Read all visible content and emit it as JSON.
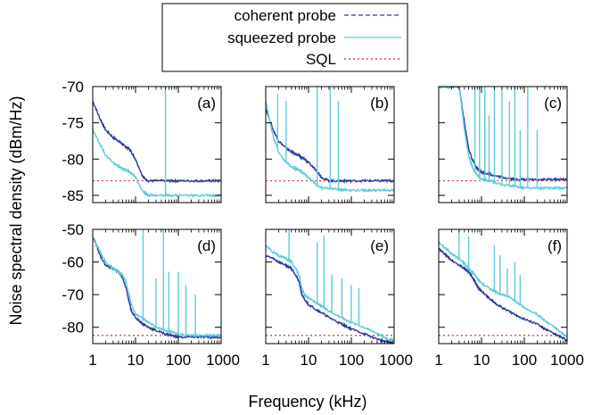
{
  "legend": {
    "placement": "top-center",
    "entries": [
      {
        "label": "coherent probe",
        "color": "#2b3a9e",
        "dash": "dashed"
      },
      {
        "label": "squeezed probe",
        "color": "#5ccbdc",
        "dash": "solid"
      },
      {
        "label": "SQL",
        "color": "#cc2222",
        "dash": "dotted"
      }
    ]
  },
  "chart_data": {
    "type": "line",
    "xlabel": "Frequency (kHz)",
    "ylabel": "Noise spectral density (dBm/Hz)",
    "xscale": "log",
    "xlim": [
      1,
      1000
    ],
    "x_ticks": [
      "1",
      "10",
      "100",
      "1000"
    ],
    "x_tick_values": [
      1,
      10,
      100,
      1000
    ],
    "x": [
      1,
      1.5,
      2,
      3,
      4,
      5,
      6,
      7,
      8,
      10,
      15,
      20,
      30,
      50,
      70,
      100,
      200,
      300,
      500,
      700,
      1000
    ],
    "rows": [
      {
        "ylim": [
          -86,
          -70
        ],
        "y_ticks": [
          "-70",
          "-75",
          "-80",
          "-85"
        ],
        "y_tick_values": [
          -70,
          -75,
          -80,
          -85
        ]
      },
      {
        "ylim": [
          -85,
          -50
        ],
        "y_ticks": [
          "-50",
          "-60",
          "-70",
          "-80"
        ],
        "y_tick_values": [
          -50,
          -60,
          -70,
          -80
        ]
      }
    ],
    "panels": [
      {
        "label": "(a)",
        "row": 0,
        "col": 0,
        "sql": -83,
        "series": [
          {
            "name": "coherent probe",
            "values": [
              -72,
              -74.5,
              -76,
              -77,
              -77.5,
              -78,
              -78.3,
              -78.6,
              -79,
              -80,
              -82.5,
              -83,
              -83,
              -83,
              -83,
              -83,
              -83,
              -83,
              -83,
              -83,
              -83
            ]
          },
          {
            "name": "squeezed probe",
            "values": [
              -76,
              -78,
              -79.5,
              -80.5,
              -81,
              -81.3,
              -81.5,
              -81.8,
              -82,
              -82.5,
              -84.5,
              -85,
              -85,
              -85,
              -85,
              -85,
              -85,
              -85,
              -85,
              -85,
              -85
            ]
          }
        ],
        "spikes": [
          {
            "x": 50,
            "y": -70
          }
        ]
      },
      {
        "label": "(b)",
        "row": 0,
        "col": 1,
        "sql": -83,
        "series": [
          {
            "name": "coherent probe",
            "values": [
              -73,
              -76,
              -77.5,
              -78.5,
              -79,
              -79.3,
              -79.5,
              -79.8,
              -80,
              -80.5,
              -81.5,
              -82.5,
              -83,
              -83,
              -83,
              -83,
              -83,
              -83,
              -83,
              -83,
              -83
            ]
          },
          {
            "name": "squeezed probe",
            "values": [
              -72,
              -77,
              -79,
              -80.5,
              -81,
              -81.3,
              -81.5,
              -81.8,
              -82,
              -82.5,
              -83.5,
              -84,
              -84,
              -84.2,
              -84.2,
              -84.3,
              -84.3,
              -84.3,
              -84.3,
              -84.3,
              -84.3
            ]
          }
        ],
        "spikes": [
          {
            "x": 1.9,
            "y": -71
          },
          {
            "x": 3,
            "y": -72
          },
          {
            "x": 16,
            "y": -70
          },
          {
            "x": 32,
            "y": -70
          },
          {
            "x": 50,
            "y": -72
          }
        ]
      },
      {
        "label": "(c)",
        "row": 0,
        "col": 2,
        "sql": -83,
        "series": [
          {
            "name": "coherent probe",
            "values": [
              -70,
              -70,
              -70,
              -70,
              -75,
              -78.5,
              -80,
              -80.8,
              -81.3,
              -81.8,
              -82,
              -82.3,
              -82.5,
              -82.7,
              -82.8,
              -82.8,
              -82.8,
              -82.8,
              -82.8,
              -82.8,
              -82.8
            ]
          },
          {
            "name": "squeezed probe",
            "values": [
              -70,
              -70,
              -70,
              -70,
              -76,
              -79.5,
              -81,
              -81.8,
              -82.2,
              -82.7,
              -83,
              -83.2,
              -83.5,
              -83.7,
              -83.8,
              -84,
              -84,
              -84,
              -84,
              -84,
              -84
            ]
          }
        ],
        "spikes": [
          {
            "x": 7,
            "y": -70
          },
          {
            "x": 9,
            "y": -70
          },
          {
            "x": 12,
            "y": -70
          },
          {
            "x": 15,
            "y": -74
          },
          {
            "x": 20,
            "y": -70
          },
          {
            "x": 30,
            "y": -70
          },
          {
            "x": 45,
            "y": -72
          },
          {
            "x": 60,
            "y": -70
          },
          {
            "x": 80,
            "y": -76
          },
          {
            "x": 120,
            "y": -70
          },
          {
            "x": 200,
            "y": -76
          }
        ]
      },
      {
        "label": "(d)",
        "row": 1,
        "col": 0,
        "sql": -82.5,
        "series": [
          {
            "name": "coherent probe",
            "values": [
              -52,
              -58,
              -61,
              -62,
              -63,
              -65,
              -68,
              -72,
              -75,
              -77,
              -79,
              -80,
              -81,
              -82,
              -82.5,
              -83,
              -83,
              -83,
              -83,
              -83,
              -83
            ]
          },
          {
            "name": "squeezed probe",
            "values": [
              -52,
              -57,
              -60,
              -62,
              -63,
              -64,
              -66,
              -70,
              -73,
              -76,
              -77.5,
              -78.5,
              -80,
              -81,
              -81.5,
              -82,
              -82.5,
              -82.5,
              -82.5,
              -82.5,
              -82.5
            ]
          }
        ],
        "spikes": [
          {
            "x": 15,
            "y": -50
          },
          {
            "x": 30,
            "y": -65
          },
          {
            "x": 45,
            "y": -50
          },
          {
            "x": 60,
            "y": -63
          },
          {
            "x": 100,
            "y": -63
          },
          {
            "x": 150,
            "y": -67
          },
          {
            "x": 250,
            "y": -70
          }
        ]
      },
      {
        "label": "(e)",
        "row": 1,
        "col": 1,
        "sql": -82.5,
        "series": [
          {
            "name": "coherent probe",
            "values": [
              -58,
              -59,
              -60,
              -61,
              -62,
              -64,
              -66,
              -70,
              -71.5,
              -73,
              -74.5,
              -75.5,
              -77,
              -78.5,
              -79.5,
              -80.5,
              -82,
              -83,
              -84,
              -84.5,
              -85
            ]
          },
          {
            "name": "squeezed probe",
            "values": [
              -55,
              -57,
              -58,
              -59,
              -60,
              -62,
              -64,
              -68,
              -70,
              -71,
              -72.5,
              -73.5,
              -75,
              -76.5,
              -77.5,
              -78.5,
              -80,
              -81,
              -82.5,
              -83.5,
              -84
            ]
          }
        ],
        "spikes": [
          {
            "x": 3.5,
            "y": -50
          },
          {
            "x": 16,
            "y": -54
          },
          {
            "x": 23,
            "y": -52
          },
          {
            "x": 35,
            "y": -64
          },
          {
            "x": 60,
            "y": -65
          },
          {
            "x": 100,
            "y": -67
          },
          {
            "x": 150,
            "y": -68
          }
        ]
      },
      {
        "label": "(f)",
        "row": 1,
        "col": 2,
        "sql": -82.5,
        "series": [
          {
            "name": "coherent probe",
            "values": [
              -56,
              -58,
              -59.5,
              -61,
              -62,
              -63,
              -64.5,
              -66,
              -67.5,
              -69,
              -71,
              -72.5,
              -74,
              -75.5,
              -76.5,
              -77.5,
              -79,
              -80.5,
              -82,
              -83,
              -84
            ]
          },
          {
            "name": "squeezed probe",
            "values": [
              -54,
              -56,
              -57.5,
              -59,
              -60.5,
              -62,
              -63,
              -64,
              -65,
              -66.5,
              -68,
              -69,
              -70,
              -71,
              -72.5,
              -74,
              -76,
              -78,
              -80,
              -81.5,
              -83
            ]
          }
        ],
        "spikes": [
          {
            "x": 3,
            "y": -50
          },
          {
            "x": 5,
            "y": -52
          },
          {
            "x": 20,
            "y": -55
          },
          {
            "x": 27,
            "y": -58
          },
          {
            "x": 40,
            "y": -62
          },
          {
            "x": 60,
            "y": -60
          },
          {
            "x": 80,
            "y": -64
          }
        ]
      }
    ]
  }
}
